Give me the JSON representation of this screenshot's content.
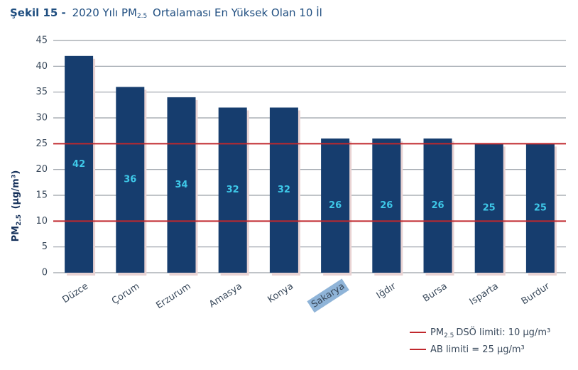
{
  "chart_data": {
    "type": "bar",
    "title": {
      "prefix": "Şekil 15 -",
      "main": "2020 Yılı PM",
      "sub": "2.5",
      "rest": "Ortalaması En Yüksek Olan 10 İl"
    },
    "y_label": {
      "main": "PM",
      "sub": "2.5",
      "rest": "(µg/m³)"
    },
    "categories": [
      "Düzce",
      "Çorum",
      "Erzurum",
      "Amasya",
      "Konya",
      "Sakarya",
      "Iğdır",
      "Bursa",
      "Isparta",
      "Burdur"
    ],
    "values": [
      42,
      36,
      34,
      32,
      32,
      26,
      26,
      26,
      25,
      25
    ],
    "color": "#163d6e",
    "label_color": "#3ec8e8",
    "ylim": [
      0,
      45
    ],
    "yticks": [
      0,
      5,
      10,
      15,
      20,
      25,
      30,
      35,
      40,
      45
    ],
    "grid": true,
    "reference_lines": [
      {
        "value": 10,
        "color": "#c0282d",
        "name": {
          "main": "PM",
          "sub": "2.5",
          "rest": "DSÖ limiti: 10 µg/m³"
        }
      },
      {
        "value": 25,
        "color": "#c0282d",
        "name": {
          "main": "AB limiti = 25 µg/m³"
        }
      }
    ],
    "legend": "bottom-right"
  }
}
